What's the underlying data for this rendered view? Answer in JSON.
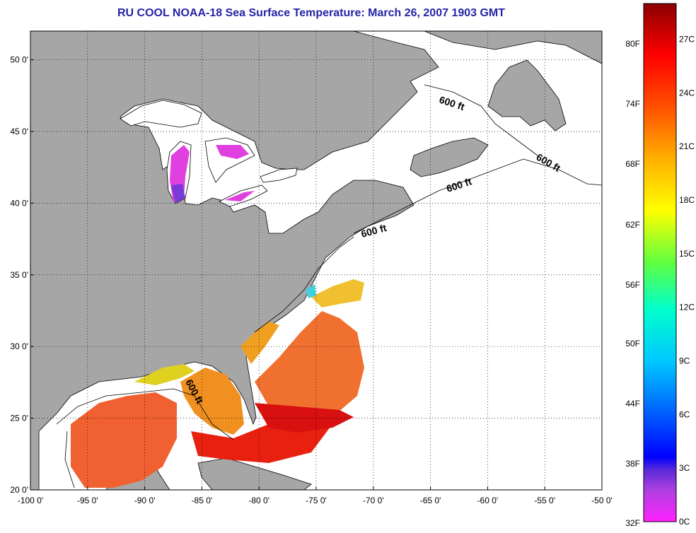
{
  "title": "RU COOL  NOAA-18  Sea Surface Temperature:  March 26, 2007 1903 GMT",
  "map": {
    "lon_range": [
      -100,
      -50
    ],
    "lat_range": [
      20,
      52
    ],
    "lon_ticks": [
      "-100 0'",
      "-95 0'",
      "-90 0'",
      "-85 0'",
      "-80 0'",
      "-75 0'",
      "-70 0'",
      "-65 0'",
      "-60 0'",
      "-55 0'",
      "-50 0'"
    ],
    "lat_ticks": [
      "20 0'",
      "25 0'",
      "30 0'",
      "35 0'",
      "40 0'",
      "45 0'",
      "50 0'"
    ],
    "contour_labels": [
      "600 ft",
      "600 ft",
      "600 ft",
      "600 ft",
      "600 ft"
    ],
    "land_color": "#a6a6a6",
    "water_nodata_color": "#ffffff"
  },
  "colorbar": {
    "fahrenheit_labels": [
      "80F",
      "74F",
      "68F",
      "62F",
      "56F",
      "50F",
      "44F",
      "38F",
      "32F"
    ],
    "celsius_labels": [
      "27C",
      "24C",
      "21C",
      "18C",
      "15C",
      "12C",
      "9C",
      "6C",
      "3C",
      "0C"
    ],
    "range_c": [
      0,
      29
    ]
  }
}
